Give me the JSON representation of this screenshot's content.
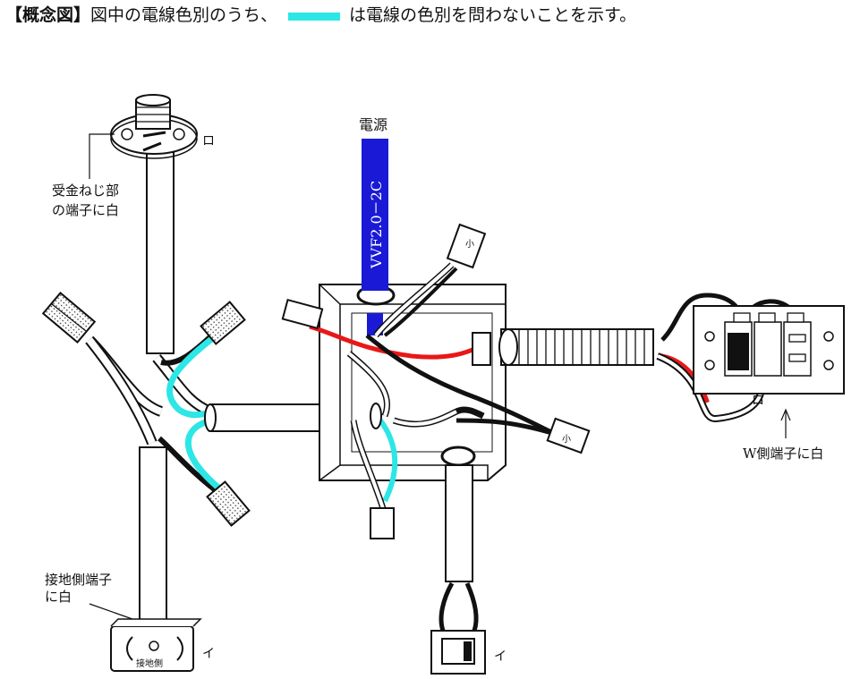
{
  "header": {
    "bracket_title": "【概念図】",
    "text_before": "図中の電線色別のうち、",
    "text_after": "は電線の色別を問わないことを示す。",
    "swatch_color": "#2de6e6"
  },
  "labels": {
    "power_source": "電源",
    "cable_spec": "VVF2.0－2C",
    "lamp_mark": "ロ",
    "lamp_note_line1": "受金ねじ部",
    "lamp_note_line2": "の端子に白",
    "outlet_note_line1": "接地側端子",
    "outlet_note_line2": "に白",
    "outlet_mark": "イ",
    "outlet_ground": "接地側",
    "switch_mark": "イ",
    "combo_mark": "ロ",
    "combo_note": "W側端子に白",
    "connector_small_1": "小",
    "connector_small_2": "小"
  },
  "colors": {
    "cable_blue": "#1a1ad6",
    "wire_red": "#e81818",
    "wire_black": "#111111",
    "wire_cyan": "#2de6e6",
    "wire_white": "#ffffff"
  }
}
